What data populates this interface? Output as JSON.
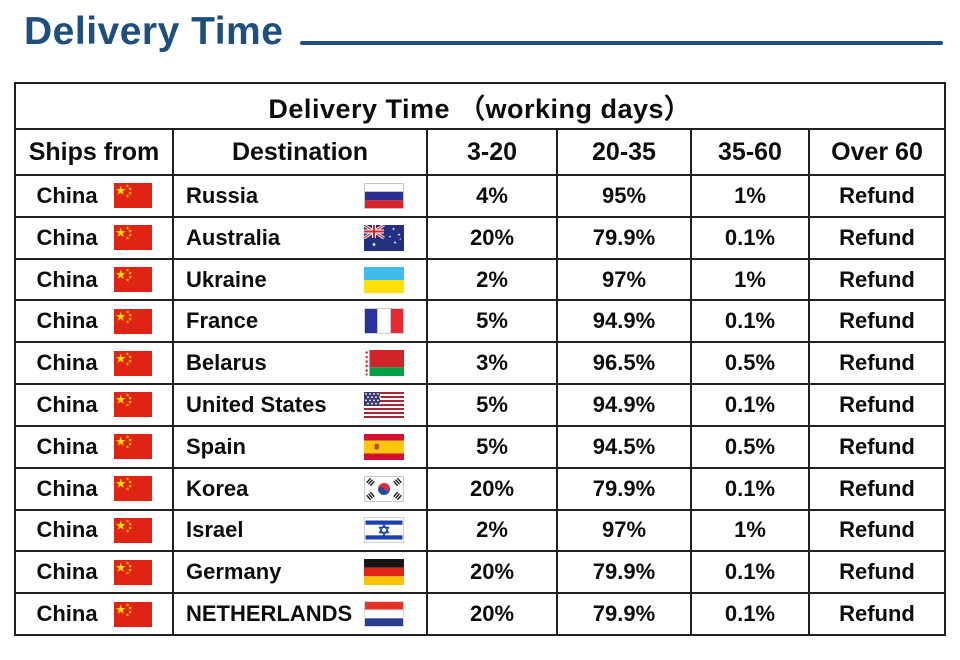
{
  "page": {
    "title": "Delivery Time",
    "colors": {
      "accent": "#1c4e7f",
      "table_border": "#202020",
      "text": "#0d0d0d"
    }
  },
  "table": {
    "header": "Delivery Time （working days）",
    "columns": [
      "Ships from",
      "Destination",
      "3-20",
      "20-35",
      "35-60",
      "Over 60"
    ],
    "rows": [
      {
        "ships_from": "China",
        "ships_from_flag": "china",
        "destination": "Russia",
        "destination_flag": "russia",
        "p3_20": "4%",
        "p20_35": "95%",
        "p35_60": "1%",
        "over_60": "Refund"
      },
      {
        "ships_from": "China",
        "ships_from_flag": "china",
        "destination": "Australia",
        "destination_flag": "australia",
        "p3_20": "20%",
        "p20_35": "79.9%",
        "p35_60": "0.1%",
        "over_60": "Refund"
      },
      {
        "ships_from": "China",
        "ships_from_flag": "china",
        "destination": "Ukraine",
        "destination_flag": "ukraine",
        "p3_20": "2%",
        "p20_35": "97%",
        "p35_60": "1%",
        "over_60": "Refund"
      },
      {
        "ships_from": "China",
        "ships_from_flag": "china",
        "destination": "France",
        "destination_flag": "france",
        "p3_20": "5%",
        "p20_35": "94.9%",
        "p35_60": "0.1%",
        "over_60": "Refund"
      },
      {
        "ships_from": "China",
        "ships_from_flag": "china",
        "destination": "Belarus",
        "destination_flag": "belarus",
        "p3_20": "3%",
        "p20_35": "96.5%",
        "p35_60": "0.5%",
        "over_60": "Refund"
      },
      {
        "ships_from": "China",
        "ships_from_flag": "china",
        "destination": "United States",
        "destination_flag": "usa",
        "p3_20": "5%",
        "p20_35": "94.9%",
        "p35_60": "0.1%",
        "over_60": "Refund"
      },
      {
        "ships_from": "China",
        "ships_from_flag": "china",
        "destination": "Spain",
        "destination_flag": "spain",
        "p3_20": "5%",
        "p20_35": "94.5%",
        "p35_60": "0.5%",
        "over_60": "Refund"
      },
      {
        "ships_from": "China",
        "ships_from_flag": "china",
        "destination": "Korea",
        "destination_flag": "korea",
        "p3_20": "20%",
        "p20_35": "79.9%",
        "p35_60": "0.1%",
        "over_60": "Refund"
      },
      {
        "ships_from": "China",
        "ships_from_flag": "china",
        "destination": "Israel",
        "destination_flag": "israel",
        "p3_20": "2%",
        "p20_35": "97%",
        "p35_60": "1%",
        "over_60": "Refund"
      },
      {
        "ships_from": "China",
        "ships_from_flag": "china",
        "destination": "Germany",
        "destination_flag": "germany",
        "p3_20": "20%",
        "p20_35": "79.9%",
        "p35_60": "0.1%",
        "over_60": "Refund"
      },
      {
        "ships_from": "China",
        "ships_from_flag": "china",
        "destination": "NETHERLANDS",
        "destination_flag": "netherlands",
        "p3_20": "20%",
        "p20_35": "79.9%",
        "p35_60": "0.1%",
        "over_60": "Refund"
      }
    ]
  }
}
